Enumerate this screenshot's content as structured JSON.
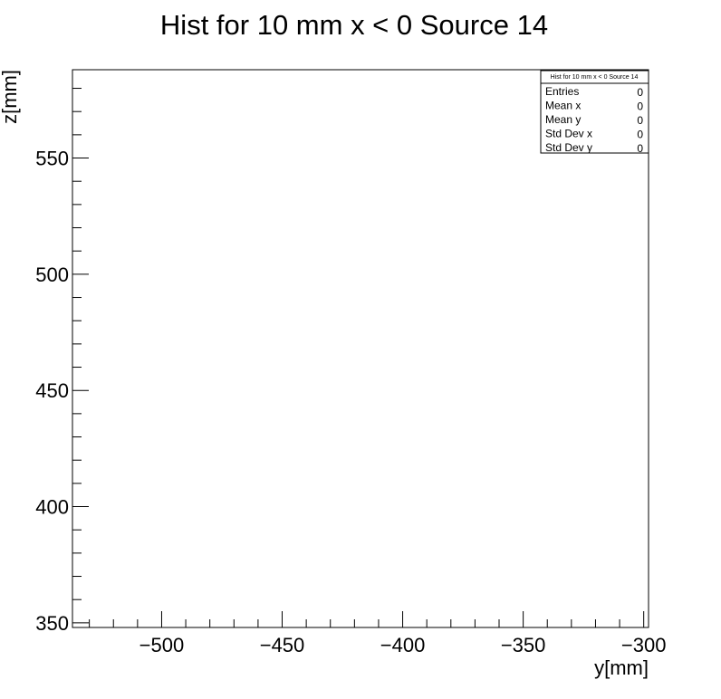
{
  "chart_data": {
    "type": "heatmap",
    "title": "Hist for 10 mm x < 0 Source 14",
    "xlabel": "y[mm]",
    "ylabel": "z[mm]",
    "xlim": [
      -537,
      -298
    ],
    "ylim": [
      348,
      588
    ],
    "x_major_ticks": [
      -500,
      -450,
      -400,
      -350,
      -300
    ],
    "x_tick_labels": [
      "−500",
      "−450",
      "−400",
      "−350",
      "−300"
    ],
    "x_minor_step": 10,
    "y_major_ticks": [
      350,
      400,
      450,
      500,
      550
    ],
    "y_tick_labels": [
      "350",
      "400",
      "450",
      "500",
      "550"
    ],
    "y_minor_step": 10,
    "grid": false,
    "values": [],
    "stats_box": {
      "title": "Hist for 10 mm x < 0 Source 14",
      "placement": "top-right",
      "rows": [
        {
          "label": "Entries",
          "value": "0"
        },
        {
          "label": "Mean x",
          "value": "0"
        },
        {
          "label": "Mean y",
          "value": "0"
        },
        {
          "label": "Std Dev x",
          "value": "0"
        },
        {
          "label": "Std Dev y",
          "value": "0"
        }
      ]
    }
  }
}
